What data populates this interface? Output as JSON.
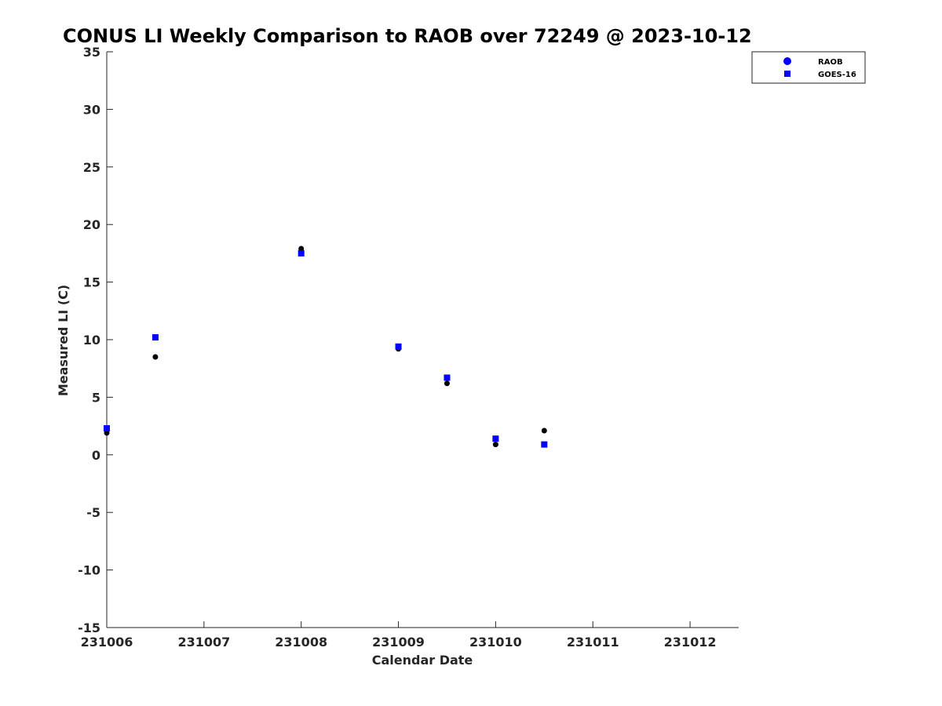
{
  "chart_data": {
    "type": "scatter",
    "title": "CONUS LI Weekly Comparison to RAOB over 72249 @ 2023-10-12",
    "xlabel": "Calendar Date",
    "ylabel": "Measured LI (C)",
    "xlim": [
      231006,
      231012.5
    ],
    "ylim": [
      -15,
      35
    ],
    "xticks": [
      231006,
      231007,
      231008,
      231009,
      231010,
      231011,
      231012
    ],
    "xtick_labels": [
      "231006",
      "231007",
      "231008",
      "231009",
      "231010",
      "231011",
      "231012"
    ],
    "yticks": [
      -15,
      -10,
      -5,
      0,
      5,
      10,
      15,
      20,
      25,
      30,
      35
    ],
    "ytick_labels": [
      "-15",
      "-10",
      "-5",
      "0",
      "5",
      "10",
      "15",
      "20",
      "25",
      "30",
      "35"
    ],
    "grid": false,
    "legend_position": "top-right, outside plot",
    "series": [
      {
        "name": "RAOB",
        "marker": "circle",
        "color": "#000000",
        "legend_color": "#0000ff",
        "x": [
          231006,
          231006.5,
          231008,
          231009,
          231009.5,
          231010,
          231010.5
        ],
        "y": [
          1.9,
          8.5,
          17.9,
          9.2,
          6.2,
          0.9,
          2.1
        ]
      },
      {
        "name": "GOES-16",
        "marker": "square",
        "color": "#0000ff",
        "legend_color": "#0000ff",
        "x": [
          231006,
          231006.5,
          231008,
          231009,
          231009.5,
          231010,
          231010.5
        ],
        "y": [
          2.3,
          10.2,
          17.5,
          9.4,
          6.7,
          1.4,
          0.9
        ]
      }
    ]
  }
}
